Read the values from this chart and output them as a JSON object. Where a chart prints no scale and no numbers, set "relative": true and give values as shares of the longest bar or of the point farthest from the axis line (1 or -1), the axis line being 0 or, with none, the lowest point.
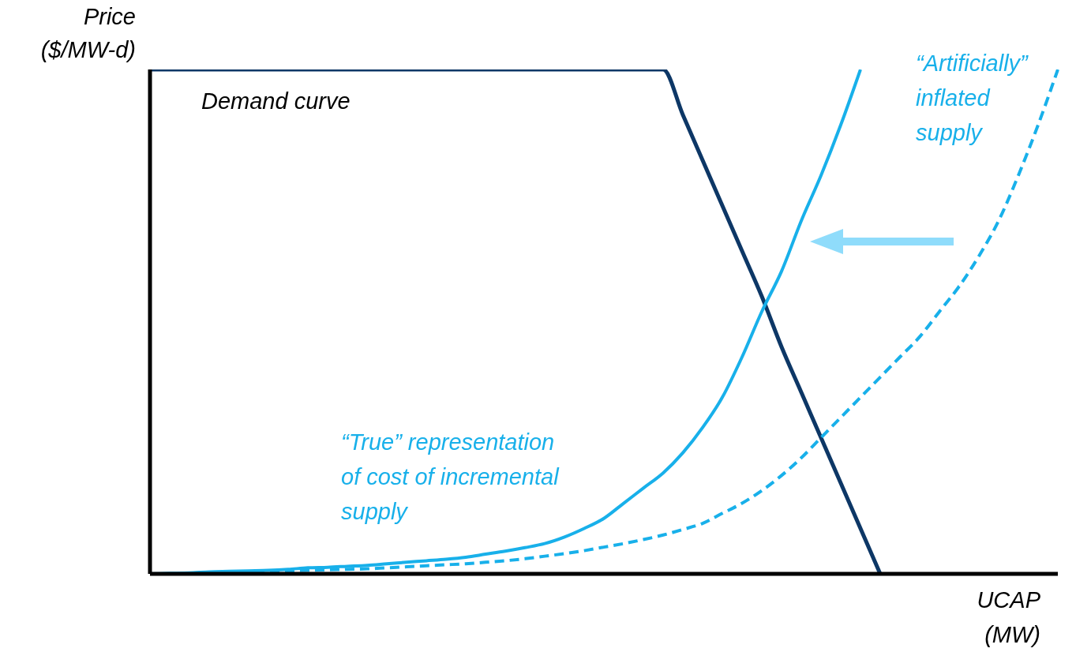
{
  "chart_data": {
    "type": "line",
    "relative": true,
    "ylabel": "Price ($/MW-d)",
    "xlabel": "UCAP (MW)",
    "legend": false,
    "grid": false,
    "marker": "none",
    "categories": [
      null,
      null,
      null,
      null,
      null,
      null,
      null,
      null,
      null,
      null,
      null,
      null,
      null,
      null,
      null,
      null,
      null,
      null,
      null,
      null,
      null,
      null,
      null,
      null,
      null,
      null,
      null,
      null,
      null,
      null,
      null,
      null,
      null,
      null,
      null,
      null,
      null,
      null,
      null,
      null,
      null,
      null,
      null,
      null,
      null,
      null,
      null
    ],
    "series": [
      {
        "name": "Demand curve",
        "color": "#0d3766",
        "line_style": "solid",
        "values": [
          1,
          1,
          1,
          1,
          1,
          1,
          1,
          1,
          1,
          1,
          1,
          1,
          1,
          1,
          1,
          1,
          1,
          1,
          1,
          1,
          1,
          1,
          1,
          1,
          1,
          1,
          1,
          0.91,
          0.82,
          0.73,
          0.64,
          0.55,
          0.45,
          0.36,
          0.27,
          0.18,
          0.09,
          0,
          null,
          null,
          null,
          null,
          null,
          null,
          null,
          null,
          null
        ]
      },
      {
        "name": "“True” representation of cost of incremental supply",
        "color": "#18b0ea",
        "line_style": "solid",
        "values": [
          0,
          0.001,
          0.002,
          0.004,
          0.005,
          0.006,
          0.007,
          0.009,
          0.012,
          0.013,
          0.015,
          0.017,
          0.02,
          0.023,
          0.026,
          0.029,
          0.033,
          0.039,
          0.045,
          0.052,
          0.06,
          0.073,
          0.09,
          0.11,
          0.14,
          0.17,
          0.2,
          0.24,
          0.29,
          0.35,
          0.43,
          0.52,
          0.6,
          0.7,
          0.79,
          0.89,
          1,
          null,
          null,
          null,
          null,
          null,
          null,
          null,
          null,
          null,
          null
        ]
      },
      {
        "name": "“Artificially” inflated supply",
        "color": "#18b0ea",
        "line_style": "dashed",
        "values": [
          0,
          0,
          0.001,
          0.002,
          0.003,
          0.004,
          0.005,
          0.006,
          0.007,
          0.008,
          0.009,
          0.01,
          0.012,
          0.014,
          0.016,
          0.018,
          0.02,
          0.023,
          0.026,
          0.03,
          0.035,
          0.04,
          0.046,
          0.053,
          0.06,
          0.068,
          0.077,
          0.088,
          0.1,
          0.12,
          0.14,
          0.165,
          0.195,
          0.23,
          0.27,
          0.31,
          0.35,
          0.39,
          0.43,
          0.47,
          0.52,
          0.57,
          0.63,
          0.7,
          0.79,
          0.89,
          1
        ]
      }
    ]
  }
}
